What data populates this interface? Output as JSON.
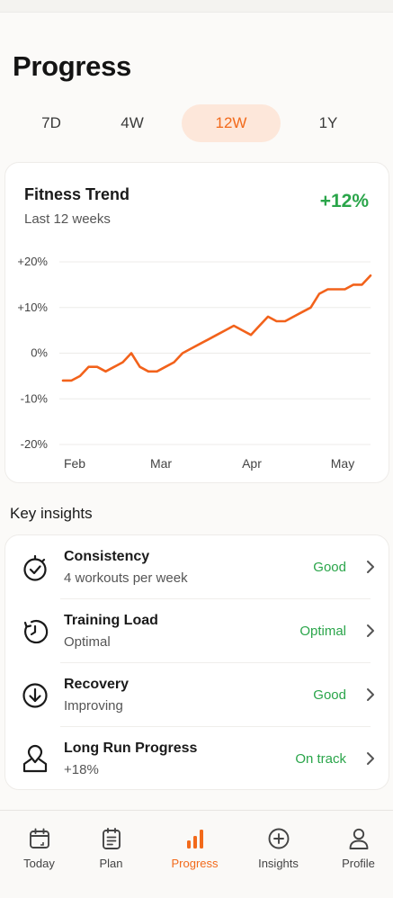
{
  "header": {
    "title": "Progress"
  },
  "ranges": [
    {
      "label": "7D",
      "active": false
    },
    {
      "label": "4W",
      "active": false
    },
    {
      "label": "12W",
      "active": true
    },
    {
      "label": "1Y",
      "active": false
    }
  ],
  "trend": {
    "title": "Fitness Trend",
    "subtitle": "Last 12 weeks",
    "change": "+12%"
  },
  "chart_data": {
    "type": "line",
    "title": "Fitness Trend",
    "subtitle": "Last 12 weeks",
    "xlabel": "",
    "ylabel": "",
    "x_ticks": [
      "Feb",
      "Mar",
      "Apr",
      "May"
    ],
    "y_ticks": [
      "+20%",
      "+10%",
      "0%",
      "-10%",
      "-20%"
    ],
    "ylim": [
      -20,
      20
    ],
    "grid": true,
    "legend": "none",
    "color": "#f2621b",
    "series": [
      {
        "x": [
          "Jan 28",
          "Jan 31",
          "Feb 3",
          "Feb 6",
          "Feb 9",
          "Feb 12",
          "Feb 15",
          "Feb 18",
          "Feb 21",
          "Feb 24",
          "Feb 27",
          "Mar 2",
          "Mar 5",
          "Mar 8",
          "Mar 11",
          "Mar 14",
          "Mar 17",
          "Mar 20",
          "Mar 23",
          "Mar 26",
          "Mar 29",
          "Apr 1",
          "Apr 4",
          "Apr 7",
          "Apr 10",
          "Apr 13",
          "Apr 16",
          "Apr 19",
          "Apr 22",
          "Apr 25",
          "Apr 28",
          "May 1",
          "May 4",
          "May 7",
          "May 10",
          "May 13",
          "May 16"
        ],
        "values": [
          -6,
          -6,
          -5,
          -3,
          -3,
          -4,
          -3,
          -2,
          0,
          -3,
          -4,
          -4,
          -3,
          -2,
          0,
          1,
          2,
          3,
          4,
          5,
          6,
          5,
          4,
          6,
          8,
          7,
          7,
          8,
          9,
          10,
          13,
          14,
          14,
          14,
          15,
          15,
          17
        ]
      }
    ]
  },
  "insights": {
    "section_title": "Key insights",
    "items": [
      {
        "title": "Consistency",
        "subtitle": "4 workouts per week",
        "status": "Good",
        "icon": "stopwatch-check-icon"
      },
      {
        "title": "Training Load",
        "subtitle": "Optimal",
        "status": "Optimal",
        "icon": "load-timer-icon"
      },
      {
        "title": "Recovery",
        "subtitle": "Improving",
        "status": "Good",
        "icon": "recovery-arrow-icon"
      },
      {
        "title": "Long Run Progress",
        "subtitle": "+18%",
        "status": "On track",
        "icon": "route-pin-icon"
      }
    ],
    "status_color": "#2aa54a"
  },
  "tabbar": {
    "items": [
      {
        "label": "Today",
        "icon": "calendar-today-icon",
        "active": false
      },
      {
        "label": "Plan",
        "icon": "clipboard-plan-icon",
        "active": false
      },
      {
        "label": "Progress",
        "icon": "bar-chart-icon",
        "active": true
      },
      {
        "label": "Insights",
        "icon": "plus-circle-icon",
        "active": false
      },
      {
        "label": "Profile",
        "icon": "user-icon",
        "active": false
      }
    ],
    "accent": "#f26a1b"
  }
}
